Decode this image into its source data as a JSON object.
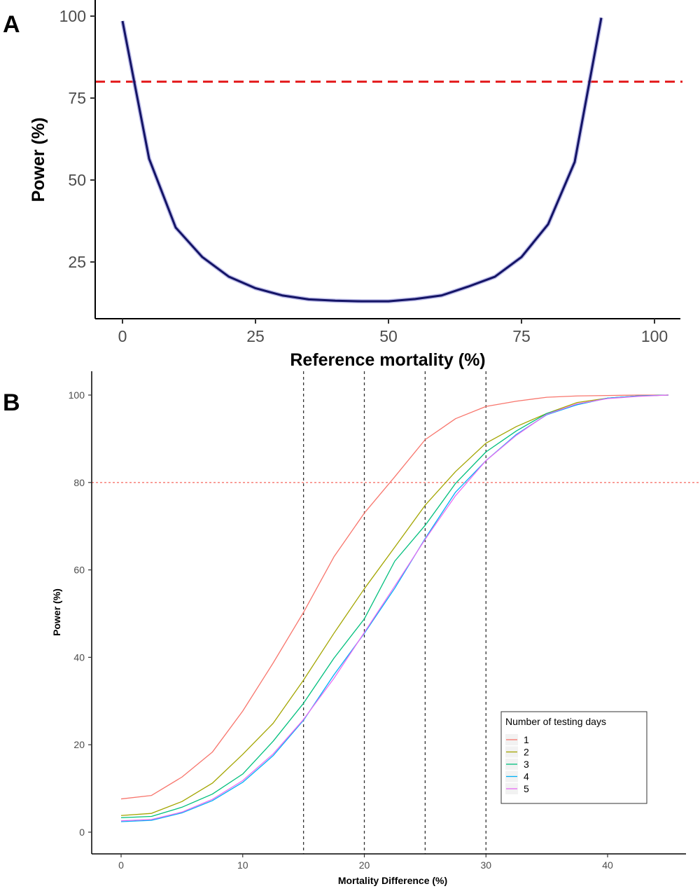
{
  "chart_data": [
    {
      "panel_label": "A",
      "type": "line",
      "xlabel": "Reference mortality (%)",
      "ylabel": "Power (%)",
      "xlim": [
        -5,
        105
      ],
      "ylim": [
        9,
        101
      ],
      "x_ticks": [
        0,
        25,
        50,
        75,
        100
      ],
      "y_ticks": [
        25,
        50,
        75,
        100
      ],
      "grid": false,
      "reference_hline": {
        "y": 80,
        "color": "#e41a1c",
        "style": "dashed"
      },
      "series": [
        {
          "color": "#141466",
          "x": [
            0,
            5,
            10,
            15,
            20,
            25,
            30,
            35,
            40,
            45,
            50,
            55,
            60,
            65,
            70,
            75,
            80,
            85,
            90
          ],
          "y": [
            98.5,
            56.5,
            35.5,
            26.5,
            20.5,
            17.0,
            14.8,
            13.6,
            13.2,
            13.0,
            13.0,
            13.7,
            14.8,
            17.5,
            20.5,
            26.5,
            36.5,
            55.5,
            99.5
          ]
        }
      ]
    },
    {
      "panel_label": "B",
      "type": "line",
      "xlabel": "Mortality Difference (%)",
      "ylabel": "Power (%)",
      "xlim": [
        -2.5,
        47.5
      ],
      "ylim": [
        -5,
        105
      ],
      "x_ticks": [
        0,
        10,
        20,
        30,
        40
      ],
      "y_ticks": [
        0,
        20,
        40,
        60,
        80,
        100
      ],
      "grid": false,
      "reference_hline": {
        "y": 80,
        "color": "#f8766d",
        "style": "dotted"
      },
      "reference_vlines": [
        15,
        20,
        25,
        30
      ],
      "legend": {
        "title": "Number of testing days",
        "placement": "bottom-right"
      },
      "x": [
        0,
        2.5,
        5,
        7.5,
        10,
        12.5,
        15,
        17.5,
        20,
        22.5,
        25,
        27.5,
        30,
        32.5,
        35,
        37.5,
        40,
        42.5,
        45
      ],
      "series": [
        {
          "name": "1",
          "color": "#F8766D",
          "values": [
            7.6,
            8.4,
            12.6,
            18.3,
            27.7,
            38.7,
            50.3,
            63.0,
            73.0,
            81.3,
            89.8,
            94.6,
            97.4,
            98.6,
            99.5,
            99.8,
            99.9,
            100,
            100
          ]
        },
        {
          "name": "2",
          "color": "#A3A500",
          "values": [
            3.8,
            4.3,
            7.0,
            11.2,
            17.8,
            24.9,
            34.8,
            45.5,
            55.7,
            65.2,
            74.8,
            82.5,
            89.0,
            92.8,
            95.8,
            98.3,
            99.3,
            99.8,
            100
          ]
        },
        {
          "name": "3",
          "color": "#00BF7D",
          "values": [
            3.3,
            3.6,
            5.7,
            8.7,
            13.3,
            20.8,
            29.5,
            39.8,
            48.8,
            62.0,
            70.2,
            79.8,
            87.0,
            91.8,
            95.8,
            97.8,
            99.3,
            99.8,
            100
          ]
        },
        {
          "name": "4",
          "color": "#00B0F6",
          "values": [
            2.4,
            2.7,
            4.4,
            7.2,
            11.4,
            17.5,
            25.6,
            36.0,
            45.5,
            55.8,
            67.2,
            77.8,
            85.0,
            91.0,
            95.5,
            97.8,
            99.3,
            99.8,
            100
          ]
        },
        {
          "name": "5",
          "color": "#E76BF3",
          "values": [
            2.6,
            2.9,
            4.6,
            7.5,
            11.8,
            17.9,
            25.8,
            35.2,
            45.7,
            56.3,
            67.0,
            77.0,
            85.0,
            90.8,
            95.6,
            98.0,
            99.2,
            99.7,
            100
          ]
        }
      ]
    }
  ]
}
